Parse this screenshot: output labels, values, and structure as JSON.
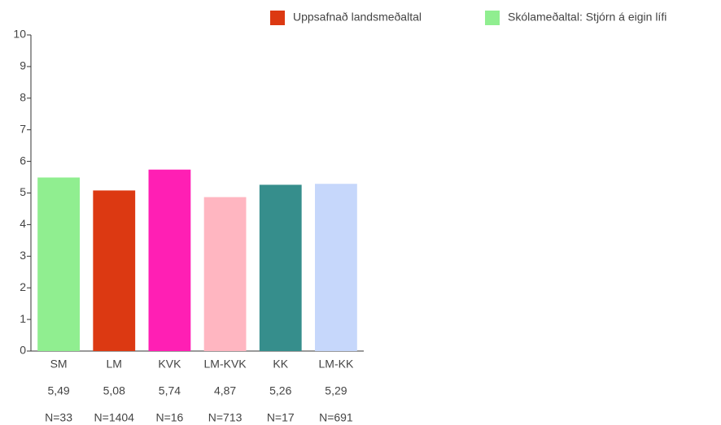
{
  "chart_data": {
    "type": "bar",
    "categories": [
      "SM",
      "LM",
      "KVK",
      "LM-KVK",
      "KK",
      "LM-KK"
    ],
    "values": [
      5.49,
      5.08,
      5.74,
      4.87,
      5.26,
      5.29
    ],
    "value_labels": [
      "5,49",
      "5,08",
      "5,74",
      "4,87",
      "5,26",
      "5,29"
    ],
    "count_labels": [
      "N=33",
      "N=1404",
      "N=16",
      "N=713",
      "N=17",
      "N=691"
    ],
    "colors": [
      "#90ee90",
      "#dc3912",
      "#ff1fb4",
      "#ffb6c1",
      "#368e8c",
      "#c6d7fb"
    ],
    "legend": [
      {
        "label": "Uppsafnað landsmeðaltal",
        "color": "#dc3912"
      },
      {
        "label": "Skólameðaltal: Stjórn á eigin lífi",
        "color": "#90ee90"
      }
    ],
    "ylim": [
      0,
      10
    ],
    "yticks": [
      0,
      1,
      2,
      3,
      4,
      5,
      6,
      7,
      8,
      9,
      10
    ],
    "grid": false
  }
}
